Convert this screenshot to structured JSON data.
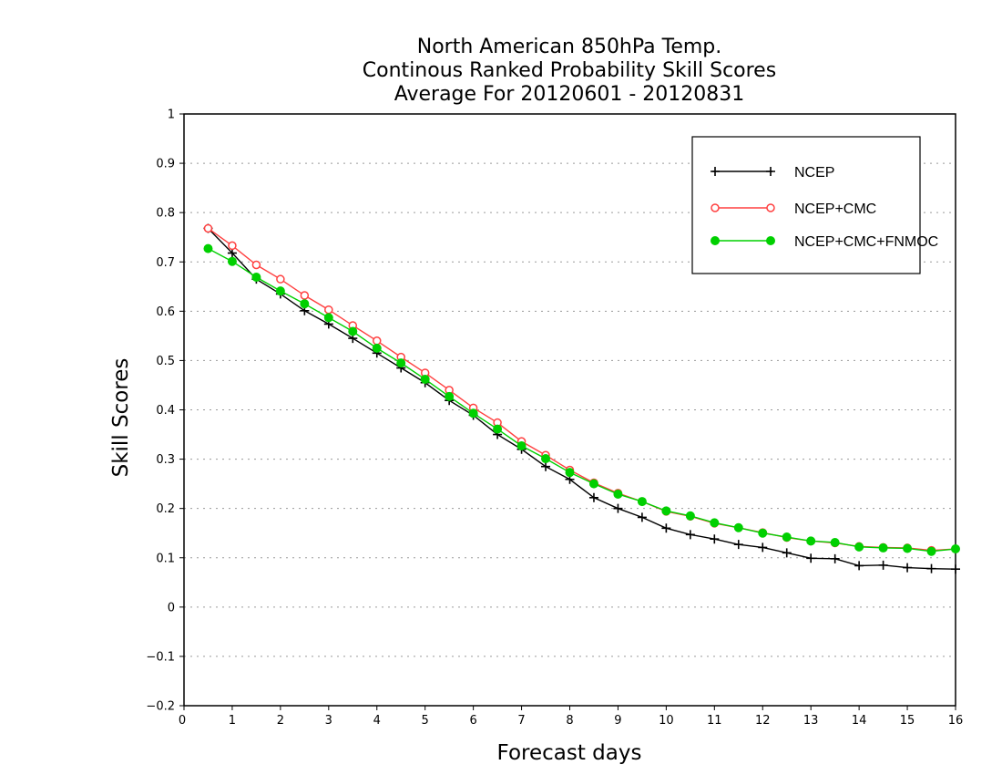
{
  "chart_data": {
    "type": "line",
    "title": [
      "North American 850hPa Temp.",
      "Continous Ranked Probability Skill Scores",
      "Average For 20120601 - 20120831"
    ],
    "xlabel": "Forecast days",
    "ylabel": "Skill Scores",
    "xlim": [
      0,
      16
    ],
    "ylim": [
      -0.2,
      1
    ],
    "xticks": [
      "0",
      "1",
      "2",
      "3",
      "4",
      "5",
      "6",
      "7",
      "8",
      "9",
      "10",
      "11",
      "12",
      "13",
      "14",
      "15",
      "16"
    ],
    "yticks": [
      "−0.2",
      "−0.1",
      "0",
      "0.1",
      "0.2",
      "0.3",
      "0.4",
      "0.5",
      "0.6",
      "0.7",
      "0.8",
      "0.9",
      "1"
    ],
    "ytick_values": [
      -0.2,
      -0.1,
      0,
      0.1,
      0.2,
      0.3,
      0.4,
      0.5,
      0.6,
      0.7,
      0.8,
      0.9,
      1.0
    ],
    "grid": "horizontal-dotted",
    "legend_position": "top-right",
    "x": [
      0.5,
      1,
      1.5,
      2,
      2.5,
      3,
      3.5,
      4,
      4.5,
      5,
      5.5,
      6,
      6.5,
      7,
      7.5,
      8,
      8.5,
      9,
      9.5,
      10,
      10.5,
      11,
      11.5,
      12,
      12.5,
      13,
      13.5,
      14,
      14.5,
      15,
      15.5,
      16
    ],
    "series": [
      {
        "name": "NCEP",
        "color": "#000000",
        "marker": "plus",
        "values": [
          0.768,
          0.718,
          0.665,
          0.635,
          0.601,
          0.574,
          0.545,
          0.515,
          0.485,
          0.455,
          0.419,
          0.389,
          0.35,
          0.32,
          0.285,
          0.259,
          0.222,
          0.2,
          0.182,
          0.16,
          0.147,
          0.138,
          0.127,
          0.121,
          0.11,
          0.099,
          0.098,
          0.084,
          0.085,
          0.08,
          0.078,
          0.077
        ]
      },
      {
        "name": "NCEP+CMC",
        "color": "#ff4040",
        "marker": "open-circle",
        "values": [
          0.768,
          0.733,
          0.694,
          0.665,
          0.632,
          0.603,
          0.571,
          0.54,
          0.507,
          0.475,
          0.44,
          0.404,
          0.374,
          0.336,
          0.308,
          0.278,
          0.252,
          0.231,
          0.214,
          0.194,
          0.184,
          0.17,
          0.161,
          0.151,
          0.141,
          0.134,
          0.13,
          0.123,
          0.121,
          0.12,
          0.115,
          0.118
        ]
      },
      {
        "name": "NCEP+CMC+FNMOC",
        "color": "#00d000",
        "marker": "filled-circle",
        "values": [
          0.727,
          0.701,
          0.669,
          0.641,
          0.615,
          0.587,
          0.559,
          0.525,
          0.495,
          0.462,
          0.427,
          0.393,
          0.361,
          0.327,
          0.301,
          0.273,
          0.25,
          0.229,
          0.214,
          0.195,
          0.185,
          0.171,
          0.161,
          0.15,
          0.142,
          0.134,
          0.131,
          0.122,
          0.12,
          0.119,
          0.113,
          0.118
        ]
      }
    ]
  }
}
